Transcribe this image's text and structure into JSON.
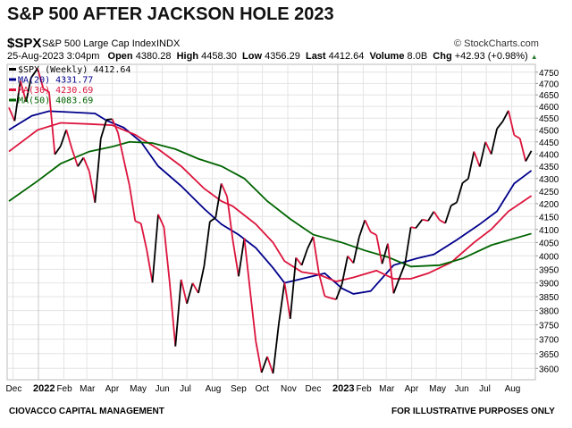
{
  "title": "S&P 500 AFTER JACKSON HOLE 2023",
  "header": {
    "symbol": "$SPX",
    "name": "S&P 500 Large Cap Index",
    "exchange": "INDX",
    "copyright": "© StockCharts.com",
    "date": "25-Aug-2023 3:04pm",
    "open_label": "Open",
    "open": "4380.28",
    "high_label": "High",
    "high": "4458.30",
    "low_label": "Low",
    "low": "4356.29",
    "last_label": "Last",
    "last": "4412.64",
    "volume_label": "Volume",
    "volume": "8.0B",
    "chg_label": "Chg",
    "chg": "+42.93 (+0.98%)"
  },
  "footer": {
    "left": "CIOVACCO CAPITAL MANAGEMENT",
    "right": "FOR ILLUSTRATIVE PURPOSES ONLY"
  },
  "chart_data": {
    "type": "line",
    "yscale": "log",
    "ylim": [
      3560,
      4790
    ],
    "grid": true,
    "legend": "top-left",
    "yticks": [
      3600,
      3650,
      3700,
      3750,
      3800,
      3850,
      3900,
      3950,
      4000,
      4050,
      4100,
      4150,
      4200,
      4250,
      4300,
      4350,
      4400,
      4450,
      4500,
      4550,
      4600,
      4650,
      4700,
      4750
    ],
    "xticks": [
      {
        "date": "2021-12-01",
        "label": "Dec"
      },
      {
        "date": "2022-01-01",
        "label": "2022",
        "bold": true
      },
      {
        "date": "2022-02-01",
        "label": "Feb"
      },
      {
        "date": "2022-03-01",
        "label": "Mar"
      },
      {
        "date": "2022-04-01",
        "label": "Apr"
      },
      {
        "date": "2022-05-01",
        "label": "May"
      },
      {
        "date": "2022-06-01",
        "label": "Jun"
      },
      {
        "date": "2022-07-01",
        "label": "Jul"
      },
      {
        "date": "2022-08-01",
        "label": "Aug"
      },
      {
        "date": "2022-09-01",
        "label": "Sep"
      },
      {
        "date": "2022-10-01",
        "label": "Oct"
      },
      {
        "date": "2022-11-01",
        "label": "Nov"
      },
      {
        "date": "2022-12-01",
        "label": "Dec"
      },
      {
        "date": "2023-01-01",
        "label": "2023",
        "bold": true
      },
      {
        "date": "2023-02-01",
        "label": "Feb"
      },
      {
        "date": "2023-03-01",
        "label": "Mar"
      },
      {
        "date": "2023-04-01",
        "label": "Apr"
      },
      {
        "date": "2023-05-01",
        "label": "May"
      },
      {
        "date": "2023-06-01",
        "label": "Jun"
      },
      {
        "date": "2023-07-01",
        "label": "Jul"
      },
      {
        "date": "2023-08-01",
        "label": "Aug"
      }
    ],
    "price": {
      "name": "$SPX (Weekly) 4412.64",
      "up_color": "#000000",
      "down_color": "#dc143c",
      "dates": [
        "2021-11-26",
        "2021-12-03",
        "2021-12-10",
        "2021-12-17",
        "2021-12-23",
        "2021-12-31",
        "2022-01-07",
        "2022-01-14",
        "2022-01-21",
        "2022-01-28",
        "2022-02-04",
        "2022-02-11",
        "2022-02-18",
        "2022-02-25",
        "2022-03-04",
        "2022-03-11",
        "2022-03-18",
        "2022-03-25",
        "2022-04-01",
        "2022-04-08",
        "2022-04-14",
        "2022-04-22",
        "2022-04-29",
        "2022-05-06",
        "2022-05-13",
        "2022-05-20",
        "2022-05-27",
        "2022-06-03",
        "2022-06-10",
        "2022-06-17",
        "2022-06-24",
        "2022-07-01",
        "2022-07-08",
        "2022-07-15",
        "2022-07-22",
        "2022-07-29",
        "2022-08-05",
        "2022-08-12",
        "2022-08-19",
        "2022-08-26",
        "2022-09-02",
        "2022-09-09",
        "2022-09-16",
        "2022-09-23",
        "2022-09-30",
        "2022-10-07",
        "2022-10-14",
        "2022-10-21",
        "2022-10-28",
        "2022-11-04",
        "2022-11-11",
        "2022-11-18",
        "2022-11-25",
        "2022-12-02",
        "2022-12-09",
        "2022-12-16",
        "2022-12-23",
        "2022-12-30",
        "2023-01-06",
        "2023-01-13",
        "2023-01-20",
        "2023-01-27",
        "2023-02-03",
        "2023-02-10",
        "2023-02-17",
        "2023-02-24",
        "2023-03-03",
        "2023-03-10",
        "2023-03-17",
        "2023-03-24",
        "2023-03-31",
        "2023-04-06",
        "2023-04-14",
        "2023-04-21",
        "2023-04-28",
        "2023-05-05",
        "2023-05-12",
        "2023-05-19",
        "2023-05-26",
        "2023-06-02",
        "2023-06-09",
        "2023-06-16",
        "2023-06-23",
        "2023-06-30",
        "2023-07-07",
        "2023-07-14",
        "2023-07-21",
        "2023-07-28",
        "2023-08-04",
        "2023-08-11",
        "2023-08-18",
        "2023-08-25"
      ],
      "values": [
        4595,
        4538,
        4712,
        4620,
        4725,
        4766,
        4677,
        4663,
        4398,
        4432,
        4501,
        4419,
        4349,
        4385,
        4329,
        4204,
        4463,
        4543,
        4546,
        4488,
        4392,
        4272,
        4132,
        4123,
        4023,
        3901,
        4158,
        4109,
        3901,
        3675,
        3912,
        3825,
        3899,
        3863,
        3962,
        4130,
        4145,
        4280,
        4228,
        4058,
        3924,
        4067,
        3873,
        3693,
        3586,
        3640,
        3583,
        3753,
        3901,
        3771,
        3993,
        3965,
        4027,
        4072,
        3934,
        3852,
        3845,
        3840,
        3895,
        3999,
        3973,
        4071,
        4136,
        4090,
        4079,
        3970,
        4046,
        3862,
        3917,
        3971,
        4109,
        4105,
        4138,
        4133,
        4169,
        4136,
        4124,
        4192,
        4205,
        4282,
        4299,
        4410,
        4348,
        4450,
        4399,
        4505,
        4536,
        4582,
        4478,
        4464,
        4370,
        4413
      ]
    },
    "series": [
      {
        "name": "MA(20) 4331.77",
        "color": "#00008b",
        "dates": [
          "2021-11-26",
          "2021-12-24",
          "2022-01-14",
          "2022-02-11",
          "2022-03-11",
          "2022-03-25",
          "2022-04-15",
          "2022-05-06",
          "2022-05-27",
          "2022-06-24",
          "2022-07-22",
          "2022-08-12",
          "2022-09-02",
          "2022-09-23",
          "2022-10-14",
          "2022-10-28",
          "2022-11-25",
          "2022-12-16",
          "2023-01-06",
          "2023-01-20",
          "2023-02-10",
          "2023-03-10",
          "2023-04-07",
          "2023-04-28",
          "2023-05-26",
          "2023-06-23",
          "2023-07-14",
          "2023-08-04",
          "2023-08-25"
        ],
        "values": [
          4500,
          4560,
          4580,
          4575,
          4570,
          4540,
          4510,
          4450,
          4350,
          4270,
          4180,
          4120,
          4080,
          4030,
          3955,
          3900,
          3920,
          3935,
          3880,
          3860,
          3870,
          3965,
          3990,
          4005,
          4060,
          4120,
          4170,
          4280,
          4332
        ]
      },
      {
        "name": "MA(30) 4230.69",
        "color": "#dc143c",
        "dates": [
          "2021-11-26",
          "2021-12-31",
          "2022-01-28",
          "2022-03-04",
          "2022-04-01",
          "2022-04-29",
          "2022-05-27",
          "2022-06-24",
          "2022-07-22",
          "2022-08-12",
          "2022-08-26",
          "2022-09-23",
          "2022-10-14",
          "2022-10-28",
          "2022-11-18",
          "2022-12-09",
          "2022-12-30",
          "2023-01-20",
          "2023-02-17",
          "2023-03-10",
          "2023-03-31",
          "2023-04-21",
          "2023-05-19",
          "2023-06-16",
          "2023-07-07",
          "2023-07-28",
          "2023-08-25"
        ],
        "values": [
          4410,
          4500,
          4530,
          4525,
          4520,
          4480,
          4420,
          4350,
          4260,
          4210,
          4190,
          4120,
          4050,
          3980,
          3940,
          3930,
          3905,
          3920,
          3945,
          3915,
          3915,
          3935,
          3975,
          4050,
          4100,
          4170,
          4231
        ]
      },
      {
        "name": "MA(50) 4083.69",
        "color": "#006400",
        "dates": [
          "2021-11-26",
          "2021-12-31",
          "2022-01-28",
          "2022-03-04",
          "2022-04-01",
          "2022-04-22",
          "2022-05-20",
          "2022-06-17",
          "2022-07-15",
          "2022-08-12",
          "2022-09-09",
          "2022-10-07",
          "2022-11-04",
          "2022-12-02",
          "2023-01-06",
          "2023-02-03",
          "2023-03-03",
          "2023-03-31",
          "2023-05-05",
          "2023-06-02",
          "2023-07-07",
          "2023-08-25"
        ],
        "values": [
          4210,
          4290,
          4360,
          4410,
          4430,
          4450,
          4445,
          4420,
          4380,
          4350,
          4300,
          4210,
          4140,
          4080,
          4050,
          4020,
          3995,
          3960,
          3965,
          3990,
          4040,
          4084
        ]
      }
    ]
  }
}
